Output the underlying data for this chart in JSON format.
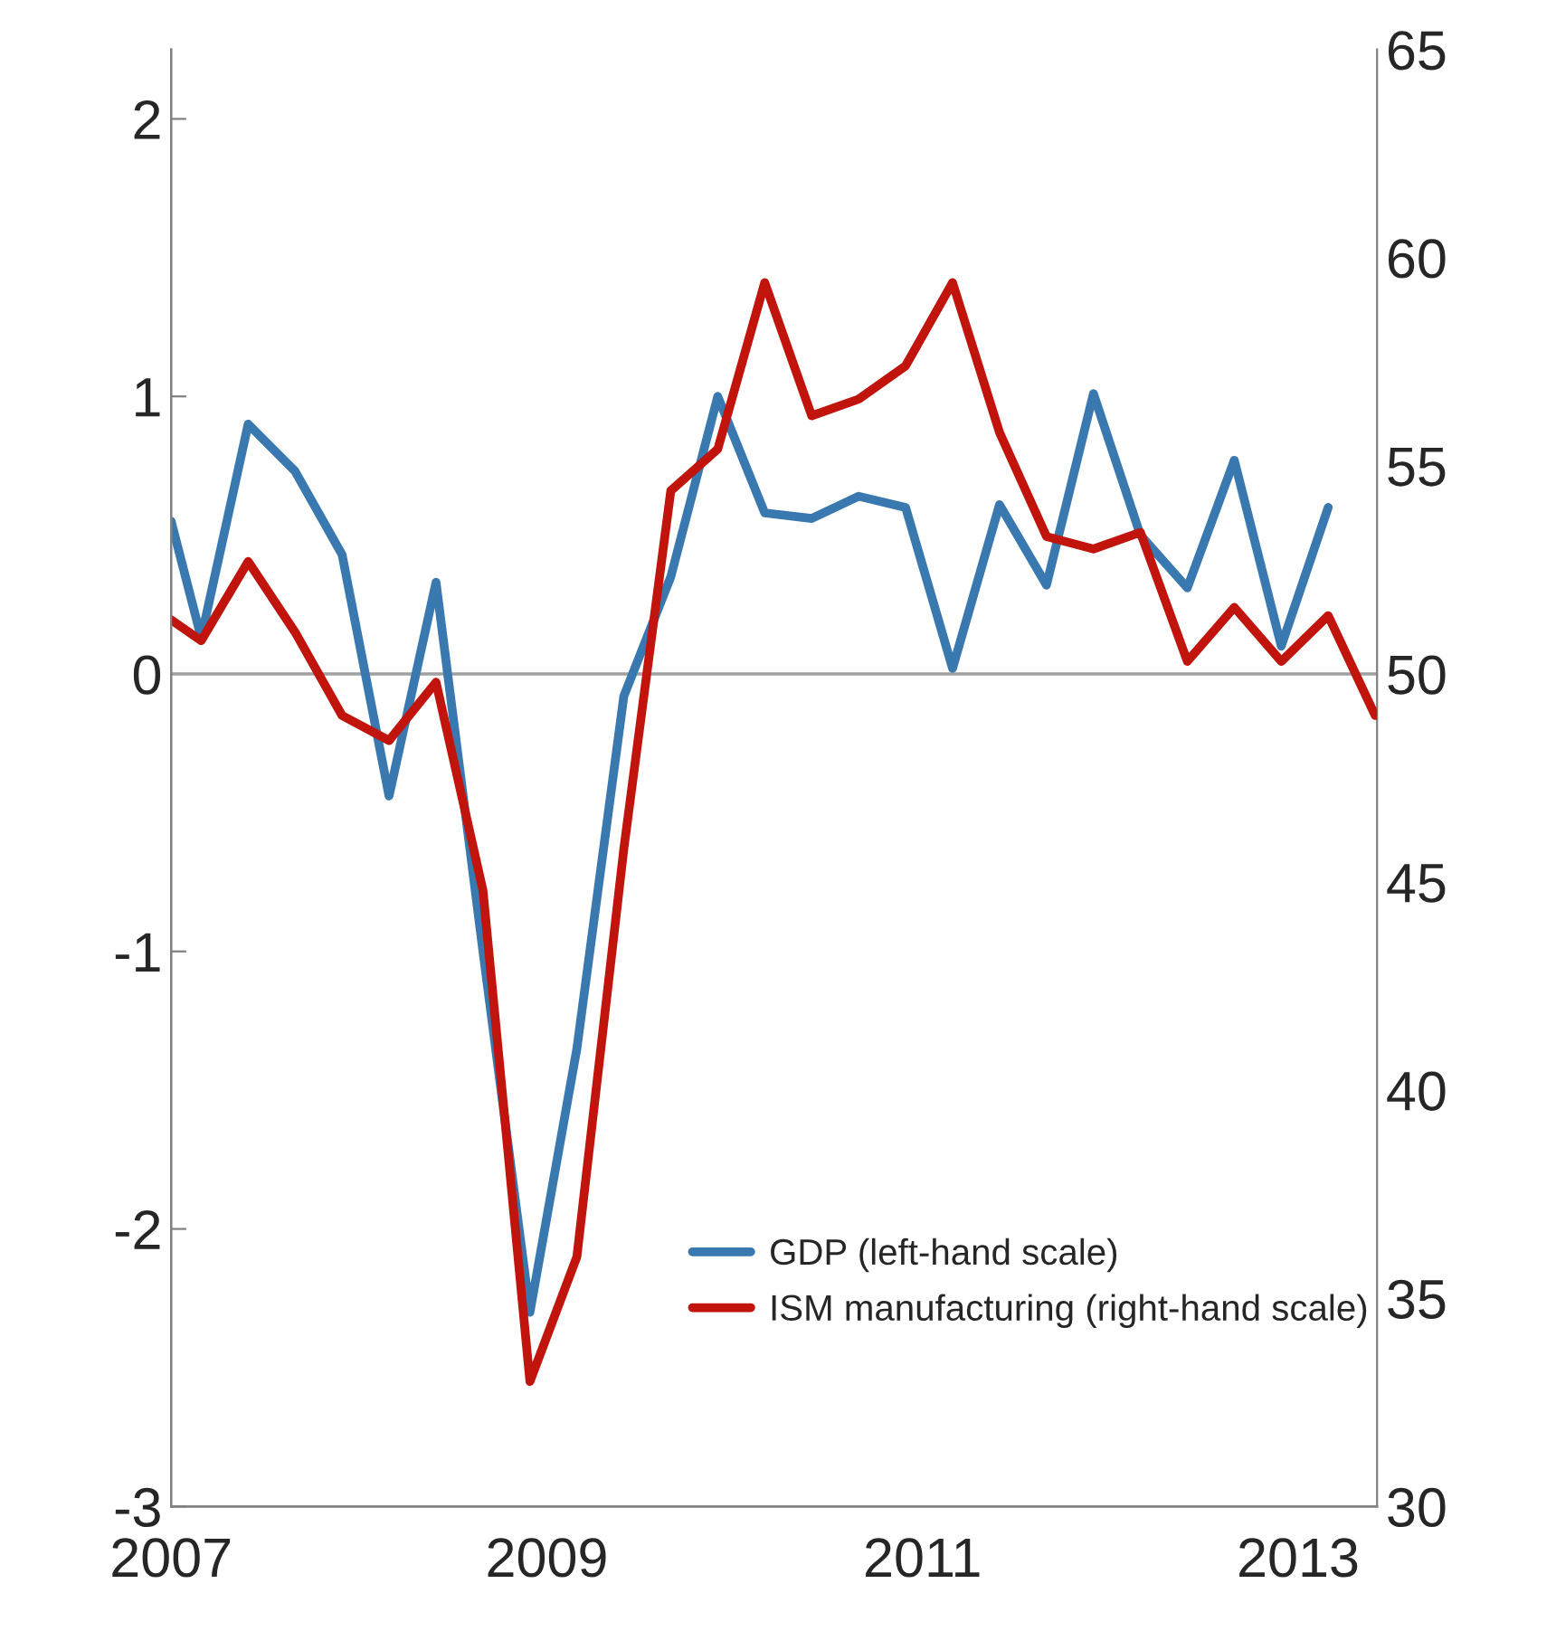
{
  "chart_data": {
    "type": "line",
    "xlim": [
      2007,
      2013.42
    ],
    "xticks": [
      2007,
      2009,
      2011,
      2013
    ],
    "ylim": [
      -3,
      2.25
    ],
    "yticks": [
      -3,
      -2,
      -1,
      0,
      1,
      2
    ],
    "y2lim": [
      30,
      65
    ],
    "y2ticks": [
      30,
      35,
      40,
      45,
      50,
      55,
      60,
      65
    ],
    "grid": false,
    "legend": "bottom right",
    "line_style": "solid",
    "marker": "none",
    "ref_lines": [
      {
        "axis": "y",
        "value": 0,
        "color": "#a0a0a0"
      }
    ],
    "series": [
      {
        "name": "GDP (left-hand scale)",
        "color": "#3a78b0",
        "x": [
          2007.0,
          2007.16,
          2007.41,
          2007.66,
          2007.91,
          2008.16,
          2008.41,
          2008.66,
          2008.91,
          2009.16,
          2009.41,
          2009.66,
          2009.91,
          2010.16,
          2010.41,
          2010.66,
          2010.91,
          2011.16,
          2011.41,
          2011.66,
          2011.91,
          2012.16,
          2012.41,
          2012.66,
          2012.91,
          2013.16
        ],
        "values": [
          0.55,
          0.13,
          0.9,
          0.73,
          0.43,
          -0.44,
          0.33,
          -1.0,
          -2.3,
          -1.35,
          -0.08,
          0.35,
          1.0,
          0.58,
          0.56,
          0.64,
          0.6,
          0.02,
          0.61,
          0.32,
          1.01,
          0.5,
          0.31,
          0.77,
          0.1,
          0.6
        ]
      },
      {
        "name": "ISM manufacturing (right-hand scale)",
        "color": "#c0140c",
        "axis": "y2",
        "x": [
          2007.0,
          2007.16,
          2007.41,
          2007.66,
          2007.91,
          2008.16,
          2008.41,
          2008.66,
          2008.91,
          2009.16,
          2009.41,
          2009.66,
          2009.91,
          2010.16,
          2010.41,
          2010.66,
          2010.91,
          2011.16,
          2011.41,
          2011.66,
          2011.91,
          2012.16,
          2012.41,
          2012.66,
          2012.91,
          2013.16,
          2013.41
        ],
        "values": [
          51.3,
          50.8,
          52.7,
          51.0,
          49.0,
          48.4,
          49.8,
          44.8,
          33.0,
          36.0,
          45.8,
          54.4,
          55.4,
          59.4,
          56.2,
          56.6,
          57.4,
          59.4,
          55.8,
          53.3,
          53.0,
          53.4,
          50.3,
          51.6,
          50.3,
          51.4,
          49.0
        ]
      }
    ]
  }
}
